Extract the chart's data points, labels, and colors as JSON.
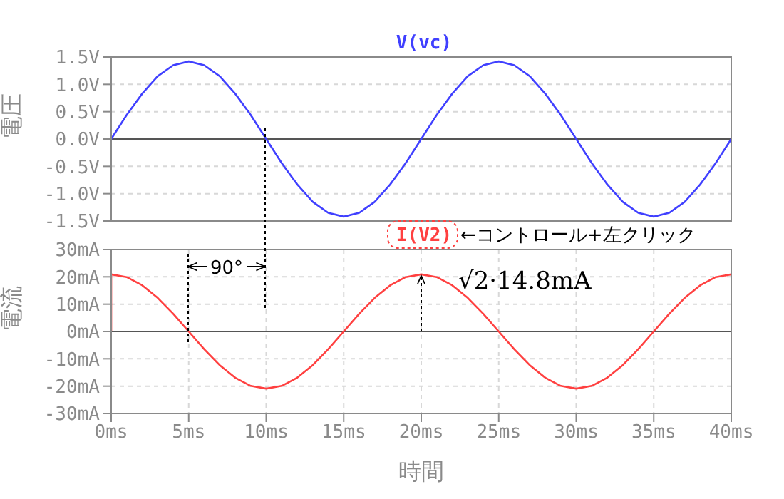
{
  "chart_data": [
    {
      "type": "line",
      "xlim": [
        0,
        40
      ],
      "xticks": [
        {
          "value": 0,
          "label": null
        },
        {
          "value": 5,
          "label": null
        },
        {
          "value": 10,
          "label": null
        },
        {
          "value": 15,
          "label": null
        },
        {
          "value": 20,
          "label": null
        },
        {
          "value": 25,
          "label": null
        },
        {
          "value": 30,
          "label": null
        },
        {
          "value": 35,
          "label": null
        },
        {
          "value": 40,
          "label": null
        }
      ],
      "tick_labels": "y",
      "ylabel": "電圧",
      "ylim": [
        -1.5,
        1.5
      ],
      "yticks": [
        {
          "value": 1.5,
          "label": "1.5V"
        },
        {
          "value": 1,
          "label": "1.0V"
        },
        {
          "value": 0.5,
          "label": "0.5V"
        },
        {
          "value": 0,
          "label": "0.0V"
        },
        {
          "value": -0.5,
          "label": "-0.5V"
        },
        {
          "value": -1,
          "label": "-1.0V"
        },
        {
          "value": -1.5,
          "label": "-1.5V"
        }
      ],
      "grid": true,
      "legend": "top",
      "ref_lines": [
        {
          "axis": "y",
          "value": 0,
          "color": "#555555"
        }
      ],
      "x": [
        0,
        1,
        2,
        3,
        4,
        5,
        6,
        7,
        8,
        9,
        10,
        11,
        12,
        13,
        14,
        15,
        16,
        17,
        18,
        19,
        20,
        21,
        22,
        23,
        24,
        25,
        26,
        27,
        28,
        29,
        30,
        31,
        32,
        33,
        34,
        35,
        36,
        37,
        38,
        39,
        40
      ],
      "series": [
        {
          "name": "V(vc)",
          "color": "#4040ff",
          "values": [
            0,
            0.44,
            0.83,
            1.15,
            1.35,
            1.42,
            1.35,
            1.15,
            0.83,
            0.44,
            0,
            -0.44,
            -0.83,
            -1.15,
            -1.35,
            -1.42,
            -1.35,
            -1.15,
            -0.83,
            -0.44,
            0,
            0.44,
            0.83,
            1.15,
            1.35,
            1.42,
            1.35,
            1.15,
            0.83,
            0.44,
            0,
            -0.44,
            -0.83,
            -1.15,
            -1.35,
            -1.42,
            -1.35,
            -1.15,
            -0.83,
            -0.44,
            0
          ]
        }
      ]
    },
    {
      "type": "line",
      "xlabel": "時間",
      "xlim": [
        0,
        40
      ],
      "xticks": [
        {
          "value": 0,
          "label": "0ms"
        },
        {
          "value": 5,
          "label": "5ms"
        },
        {
          "value": 10,
          "label": "10ms"
        },
        {
          "value": 15,
          "label": "15ms"
        },
        {
          "value": 20,
          "label": "20ms"
        },
        {
          "value": 25,
          "label": "25ms"
        },
        {
          "value": 30,
          "label": "30ms"
        },
        {
          "value": 35,
          "label": "35ms"
        },
        {
          "value": 40,
          "label": "40ms"
        }
      ],
      "ylabel": "電流",
      "ylim": [
        -30,
        30
      ],
      "yticks": [
        {
          "value": 30,
          "label": "30mA"
        },
        {
          "value": 20,
          "label": "20mA"
        },
        {
          "value": 10,
          "label": "10mA"
        },
        {
          "value": 0,
          "label": "0mA"
        },
        {
          "value": -10,
          "label": "-10mA"
        },
        {
          "value": -20,
          "label": "-20mA"
        },
        {
          "value": -30,
          "label": "-30mA"
        }
      ],
      "grid": true,
      "legend": "top",
      "ref_lines": [
        {
          "axis": "y",
          "value": 0,
          "color": "#555555"
        }
      ],
      "annotations": [
        "←コントロール+左クリック",
        "90°",
        {
          "text": "√2·14.8mA",
          "x": 20,
          "y": 20.9
        }
      ],
      "x": [
        0,
        0,
        1,
        2,
        3,
        4,
        5,
        6,
        7,
        8,
        9,
        10,
        11,
        12,
        13,
        14,
        15,
        16,
        17,
        18,
        19,
        20,
        21,
        22,
        23,
        24,
        25,
        26,
        27,
        28,
        29,
        30,
        31,
        32,
        33,
        34,
        35,
        36,
        37,
        38,
        39,
        40
      ],
      "series": [
        {
          "name": "I(V2)",
          "color": "#ff4040",
          "values": [
            0,
            20.9,
            19.9,
            16.9,
            12.3,
            6.5,
            0,
            -6.5,
            -12.3,
            -16.9,
            -19.9,
            -20.9,
            -19.9,
            -16.9,
            -12.3,
            -6.5,
            0,
            6.5,
            12.3,
            16.9,
            19.9,
            20.9,
            19.9,
            16.9,
            12.3,
            6.5,
            0,
            -6.5,
            -12.3,
            -16.9,
            -19.9,
            -20.9,
            -19.9,
            -16.9,
            -12.3,
            -6.5,
            0,
            6.5,
            12.3,
            16.9,
            19.9,
            20.9
          ]
        }
      ]
    }
  ]
}
